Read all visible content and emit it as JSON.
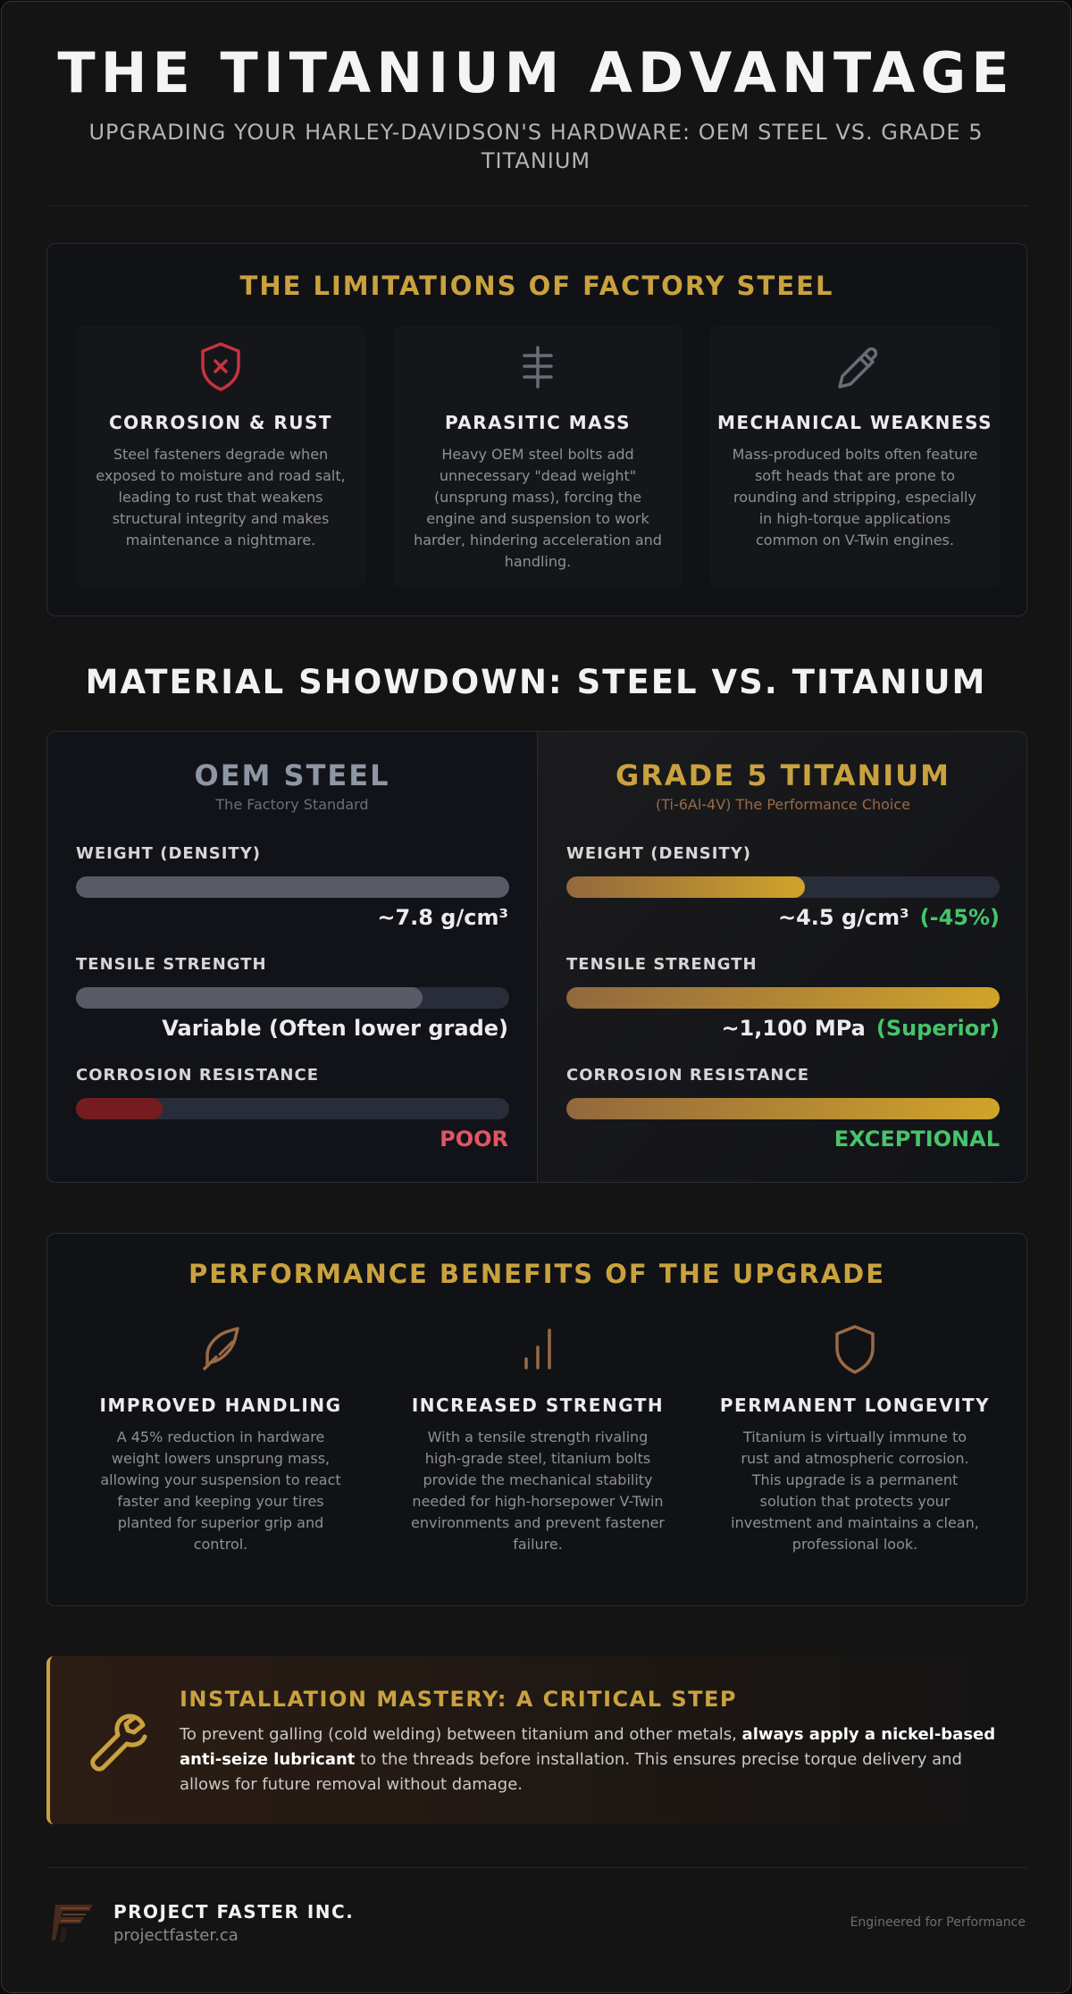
{
  "hero": {
    "title": "THE TITANIUM ADVANTAGE",
    "subtitle": "UPGRADING YOUR HARLEY-DAVIDSON'S HARDWARE: OEM STEEL VS. GRADE 5 TITANIUM"
  },
  "limitations": {
    "title": "THE LIMITATIONS OF FACTORY STEEL",
    "cards": [
      {
        "icon": "shield-x-icon",
        "title": "CORROSION & RUST",
        "text": "Steel fasteners degrade when exposed to moisture and road salt, leading to rust that weakens structural integrity and makes maintenance a nightmare."
      },
      {
        "icon": "weight-bar-icon",
        "title": "PARASITIC MASS",
        "text": "Heavy OEM steel bolts add unnecessary \"dead weight\" (unsprung mass), forcing the engine and suspension to work harder, hindering acceleration and handling."
      },
      {
        "icon": "pencil-icon",
        "title": "MECHANICAL WEAKNESS",
        "text": "Mass-produced bolts often feature soft heads that are prone to rounding and stripping, especially in high-torque applications common on V-Twin engines."
      }
    ]
  },
  "showdown": {
    "title": "MATERIAL SHOWDOWN: STEEL VS. TITANIUM",
    "steel": {
      "title": "OEM STEEL",
      "subtitle": "The Factory Standard",
      "metrics": [
        {
          "label": "WEIGHT (DENSITY)",
          "fill": 1.0,
          "value": "~7.8 g/cm³",
          "highlight": ""
        },
        {
          "label": "TENSILE STRENGTH",
          "fill": 0.8,
          "value": "Variable (Often lower grade)",
          "highlight": ""
        },
        {
          "label": "CORROSION RESISTANCE",
          "fill": 0.2,
          "value": "POOR",
          "highlight": ""
        }
      ]
    },
    "titanium": {
      "title": "GRADE 5 TITANIUM",
      "subtitle": "(Ti-6Al-4V) The Performance Choice",
      "metrics": [
        {
          "label": "WEIGHT (DENSITY)",
          "fill": 0.55,
          "value": "~4.5 g/cm³",
          "highlight": "(-45%)"
        },
        {
          "label": "TENSILE STRENGTH",
          "fill": 1.0,
          "value": "~1,100 MPa",
          "highlight": "(Superior)"
        },
        {
          "label": "CORROSION RESISTANCE",
          "fill": 1.0,
          "value": "EXCEPTIONAL",
          "highlight": ""
        }
      ]
    }
  },
  "benefits": {
    "title": "PERFORMANCE BENEFITS OF THE UPGRADE",
    "items": [
      {
        "icon": "feather-icon",
        "title": "IMPROVED HANDLING",
        "text": "A 45% reduction in hardware weight lowers unsprung mass, allowing your suspension to react faster and keeping your tires planted for superior grip and control."
      },
      {
        "icon": "bar-chart-icon",
        "title": "INCREASED STRENGTH",
        "text": "With a tensile strength rivaling high-grade steel, titanium bolts provide the mechanical stability needed for high-horsepower V-Twin environments and prevent fastener failure."
      },
      {
        "icon": "shield-icon",
        "title": "PERMANENT LONGEVITY",
        "text": "Titanium is virtually immune to rust and atmospheric corrosion. This upgrade is a permanent solution that protects your investment and maintains a clean, professional look."
      }
    ]
  },
  "callout": {
    "icon": "wrench-icon",
    "title": "INSTALLATION MASTERY: A CRITICAL STEP",
    "text_before": "To prevent galling (cold welding) between titanium and other metals, ",
    "text_bold": "always apply a nickel-based anti-seize lubricant",
    "text_after": " to the threads before installation. This ensures precise torque delivery and allows for future removal without damage."
  },
  "footer": {
    "logo_icon": "f-logo-icon",
    "company": "PROJECT FASTER INC.",
    "url": "projectfaster.ca",
    "tagline": "Engineered for Performance"
  },
  "colors": {
    "gold": "#c9a23f",
    "bronze": "#9a6a45",
    "danger": "#e05563",
    "success": "#47c46a",
    "steel_grey": "#8e96a4"
  }
}
